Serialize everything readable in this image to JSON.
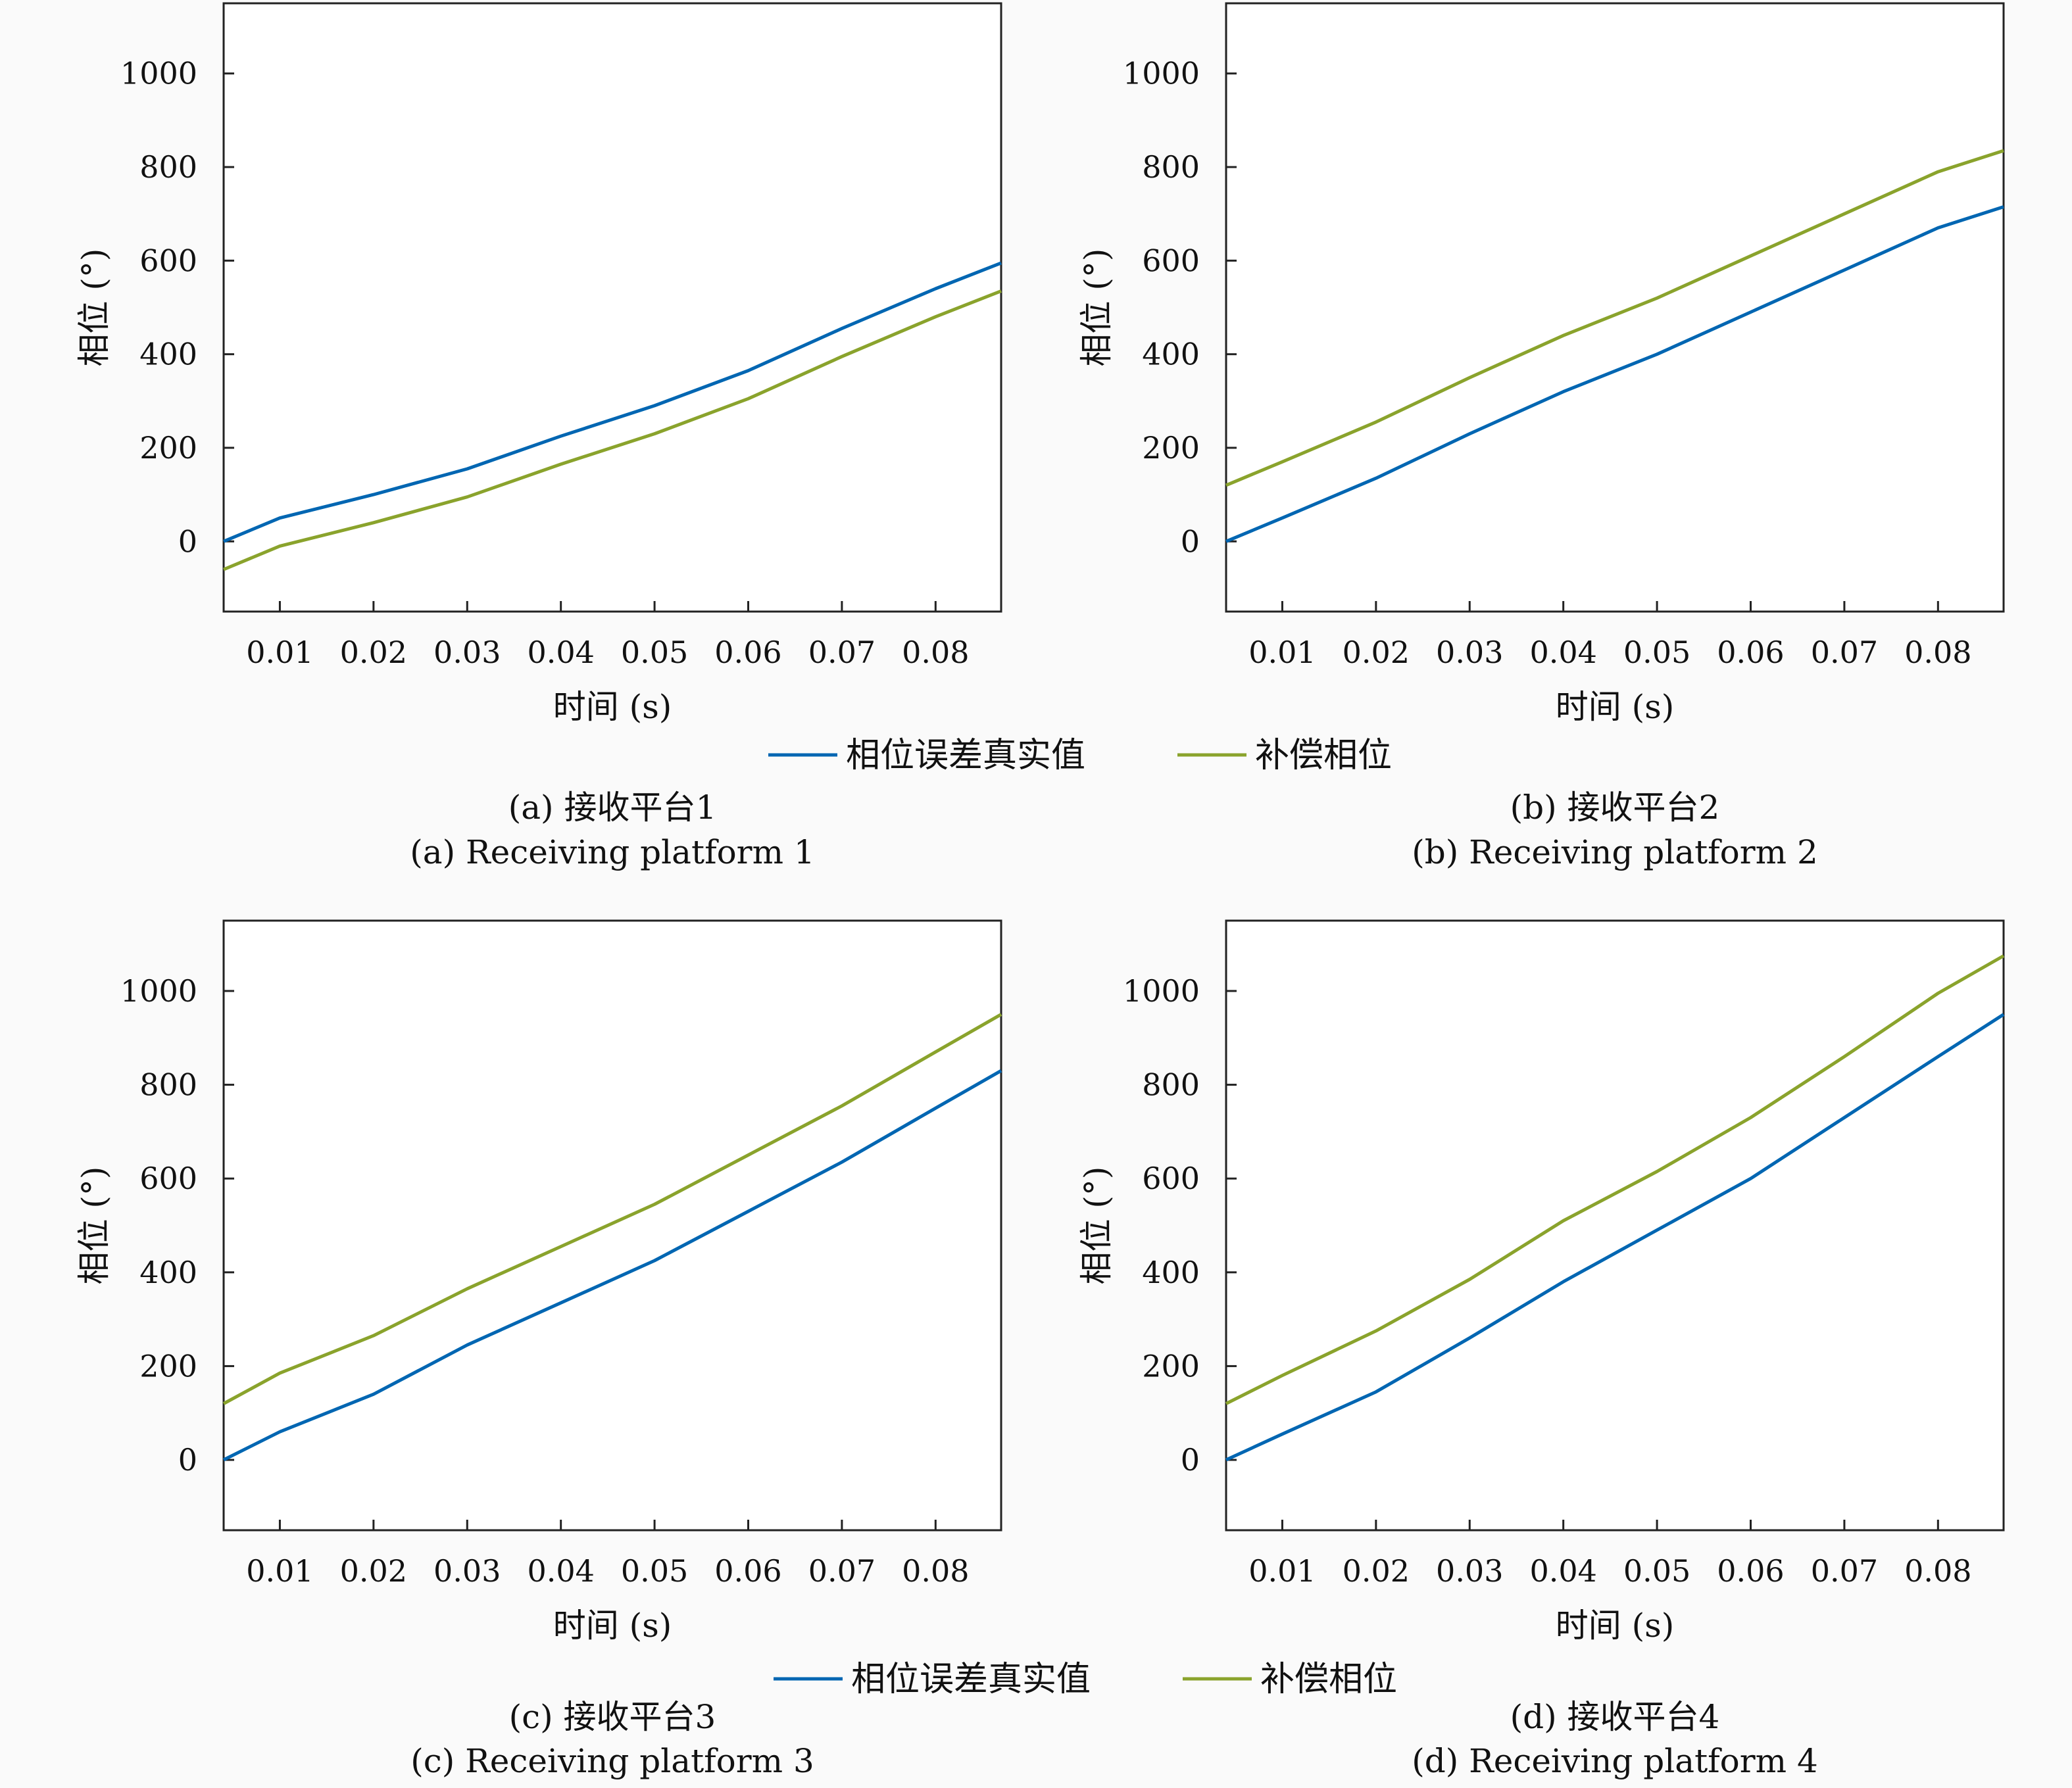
{
  "legend": {
    "entries": [
      {
        "label": "相位误差真实值",
        "color": "#0066b2"
      },
      {
        "label": "补偿相位",
        "color": "#8aa32c"
      }
    ]
  },
  "chart_data": [
    {
      "type": "line",
      "caption_cn": "(a) 接收平台1",
      "caption_en": "(a) Receiving platform 1",
      "xlabel": "时间 (s)",
      "ylabel": "相位 (°)",
      "xlim": [
        0.004,
        0.087
      ],
      "ylim": [
        -150,
        1150
      ],
      "xticks": [
        "0.01",
        "0.02",
        "0.03",
        "0.04",
        "0.05",
        "0.06",
        "0.07",
        "0.08"
      ],
      "yticks": [
        "0",
        "200",
        "400",
        "600",
        "800",
        "1000"
      ],
      "series": [
        {
          "name": "相位误差真实值",
          "x": [
            0.004,
            0.01,
            0.02,
            0.03,
            0.04,
            0.05,
            0.06,
            0.07,
            0.08,
            0.087
          ],
          "y": [
            0,
            50,
            100,
            155,
            225,
            290,
            365,
            455,
            540,
            595
          ]
        },
        {
          "name": "补偿相位",
          "x": [
            0.004,
            0.01,
            0.02,
            0.03,
            0.04,
            0.05,
            0.06,
            0.07,
            0.08,
            0.087
          ],
          "y": [
            -60,
            -10,
            40,
            95,
            165,
            230,
            305,
            395,
            480,
            535
          ]
        }
      ]
    },
    {
      "type": "line",
      "caption_cn": "(b) 接收平台2",
      "caption_en": "(b) Receiving platform 2",
      "xlabel": "时间 (s)",
      "ylabel": "相位 (°)",
      "xlim": [
        0.004,
        0.087
      ],
      "ylim": [
        -150,
        1150
      ],
      "xticks": [
        "0.01",
        "0.02",
        "0.03",
        "0.04",
        "0.05",
        "0.06",
        "0.07",
        "0.08"
      ],
      "yticks": [
        "0",
        "200",
        "400",
        "600",
        "800",
        "1000"
      ],
      "series": [
        {
          "name": "相位误差真实值",
          "x": [
            0.004,
            0.01,
            0.02,
            0.03,
            0.04,
            0.05,
            0.06,
            0.07,
            0.08,
            0.087
          ],
          "y": [
            0,
            50,
            135,
            230,
            320,
            400,
            490,
            580,
            670,
            715
          ]
        },
        {
          "name": "补偿相位",
          "x": [
            0.004,
            0.01,
            0.02,
            0.03,
            0.04,
            0.05,
            0.06,
            0.07,
            0.08,
            0.087
          ],
          "y": [
            120,
            170,
            255,
            350,
            440,
            520,
            610,
            700,
            790,
            835
          ]
        }
      ]
    },
    {
      "type": "line",
      "caption_cn": "(c) 接收平台3",
      "caption_en": "(c) Receiving platform 3",
      "xlabel": "时间 (s)",
      "ylabel": "相位 (°)",
      "xlim": [
        0.004,
        0.087
      ],
      "ylim": [
        -150,
        1150
      ],
      "xticks": [
        "0.01",
        "0.02",
        "0.03",
        "0.04",
        "0.05",
        "0.06",
        "0.07",
        "0.08"
      ],
      "yticks": [
        "0",
        "200",
        "400",
        "600",
        "800",
        "1000"
      ],
      "series": [
        {
          "name": "相位误差真实值",
          "x": [
            0.004,
            0.01,
            0.02,
            0.03,
            0.04,
            0.05,
            0.06,
            0.07,
            0.08,
            0.087
          ],
          "y": [
            0,
            60,
            140,
            245,
            335,
            425,
            530,
            635,
            750,
            830
          ]
        },
        {
          "name": "补偿相位",
          "x": [
            0.004,
            0.01,
            0.02,
            0.03,
            0.04,
            0.05,
            0.06,
            0.07,
            0.08,
            0.087
          ],
          "y": [
            120,
            185,
            265,
            365,
            455,
            545,
            650,
            755,
            870,
            950
          ]
        }
      ]
    },
    {
      "type": "line",
      "caption_cn": "(d) 接收平台4",
      "caption_en": "(d) Receiving platform 4",
      "xlabel": "时间 (s)",
      "ylabel": "相位 (°)",
      "xlim": [
        0.004,
        0.087
      ],
      "ylim": [
        -150,
        1150
      ],
      "xticks": [
        "0.01",
        "0.02",
        "0.03",
        "0.04",
        "0.05",
        "0.06",
        "0.07",
        "0.08"
      ],
      "yticks": [
        "0",
        "200",
        "400",
        "600",
        "800",
        "1000"
      ],
      "series": [
        {
          "name": "相位误差真实值",
          "x": [
            0.004,
            0.01,
            0.02,
            0.03,
            0.04,
            0.05,
            0.06,
            0.07,
            0.08,
            0.087
          ],
          "y": [
            0,
            55,
            145,
            260,
            380,
            490,
            600,
            730,
            860,
            950
          ]
        },
        {
          "name": "补偿相位",
          "x": [
            0.004,
            0.01,
            0.02,
            0.03,
            0.04,
            0.05,
            0.06,
            0.07,
            0.08,
            0.087
          ],
          "y": [
            120,
            180,
            275,
            385,
            510,
            615,
            730,
            860,
            995,
            1075
          ]
        }
      ]
    }
  ]
}
